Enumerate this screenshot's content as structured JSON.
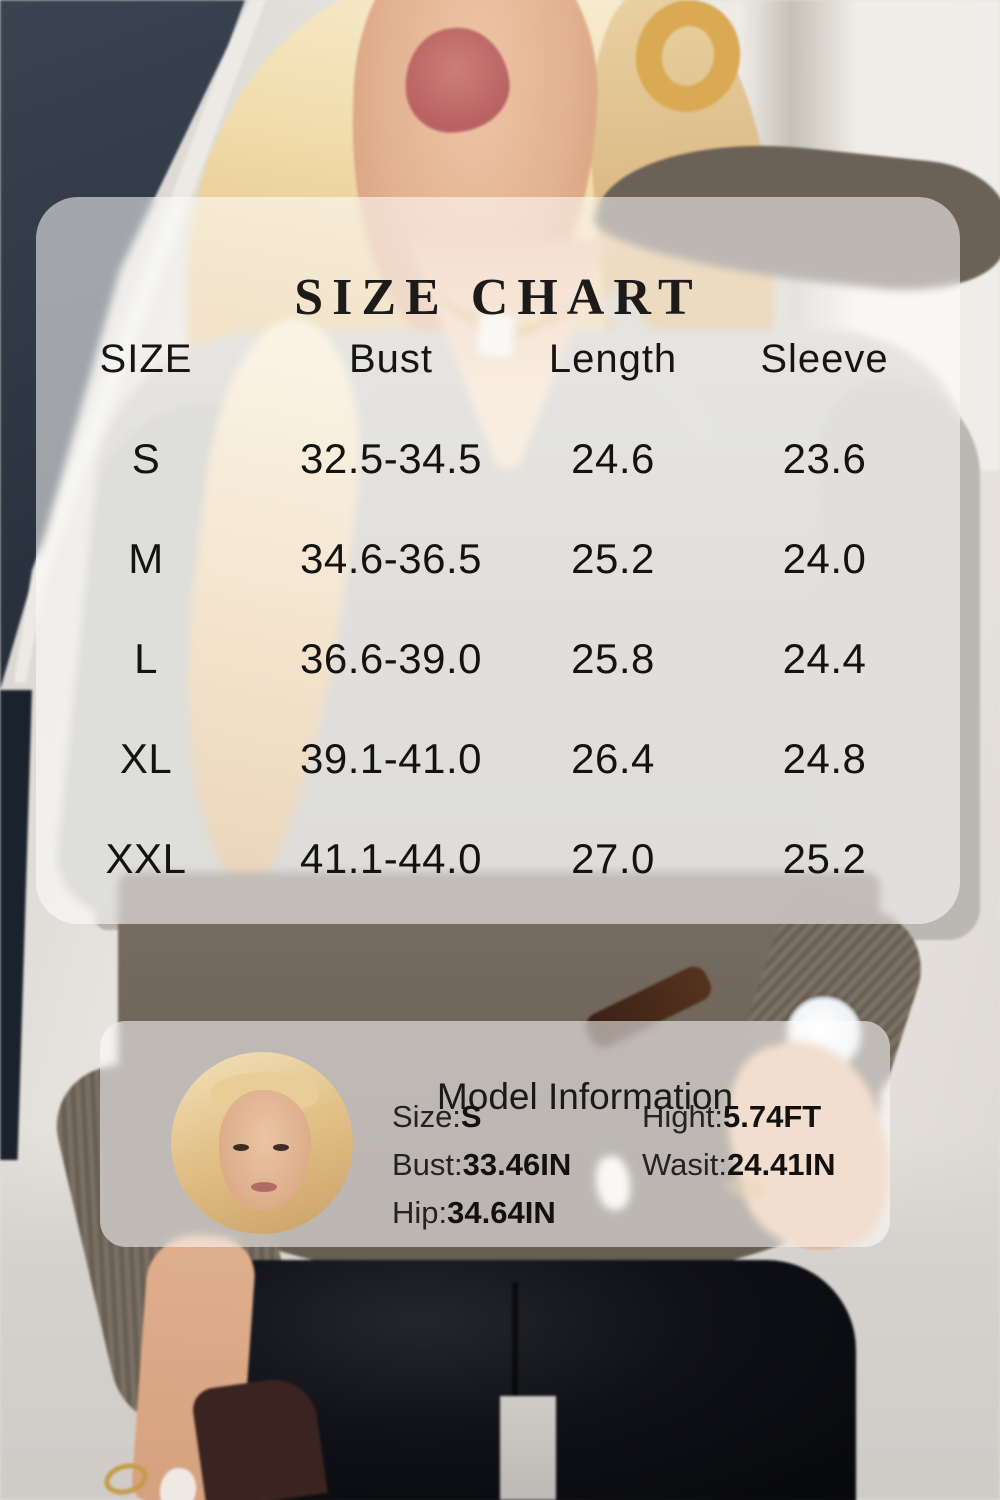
{
  "size_chart": {
    "title": "SIZE CHART",
    "columns": [
      "SIZE",
      "Bust",
      "Length",
      "Sleeve"
    ],
    "rows": [
      {
        "size": "S",
        "bust": "32.5-34.5",
        "length": "24.6",
        "sleeve": "23.6"
      },
      {
        "size": "M",
        "bust": "34.6-36.5",
        "length": "25.2",
        "sleeve": "24.0"
      },
      {
        "size": "L",
        "bust": "36.6-39.0",
        "length": "25.8",
        "sleeve": "24.4"
      },
      {
        "size": "XL",
        "bust": "39.1-41.0",
        "length": "26.4",
        "sleeve": "24.8"
      },
      {
        "size": "XXL",
        "bust": "41.1-44.0",
        "length": "27.0",
        "sleeve": "25.2"
      }
    ]
  },
  "model_info": {
    "title": "Model Information",
    "specs": [
      {
        "label": "Size:",
        "value": "S"
      },
      {
        "label": "Hight:",
        "value": "5.74FT"
      },
      {
        "label": "Bust:",
        "value": "33.46IN"
      },
      {
        "label": "Wasit:",
        "value": "24.41IN"
      },
      {
        "label": "Hip:",
        "value": "34.64IN"
      }
    ]
  },
  "chart_data": {
    "type": "table",
    "title": "SIZE CHART",
    "columns": [
      "SIZE",
      "Bust",
      "Length",
      "Sleeve"
    ],
    "rows": [
      [
        "S",
        "32.5-34.5",
        "24.6",
        "23.6"
      ],
      [
        "M",
        "34.6-36.5",
        "25.2",
        "24.0"
      ],
      [
        "L",
        "36.6-39.0",
        "25.8",
        "24.4"
      ],
      [
        "XL",
        "39.1-41.0",
        "26.4",
        "24.8"
      ],
      [
        "XXL",
        "41.1-44.0",
        "27.0",
        "25.2"
      ]
    ],
    "model_information": {
      "size": "S",
      "height": "5.74FT",
      "bust": "33.46IN",
      "waist": "24.41IN",
      "hip": "34.64IN"
    }
  },
  "colors": {
    "overlay_panel": "#f7f5f3",
    "text": "#1d1c1a",
    "sweater_grey": "#bcbab5",
    "sweater_taupe": "#6f6459",
    "pants_black": "#0c0d10",
    "door_navy": "#1b2330",
    "hair_blonde": "#e9cf9e",
    "wall_beige": "#e7e4de",
    "watch_strap_brown": "#4a2a1a",
    "gold": "#cda24f"
  }
}
